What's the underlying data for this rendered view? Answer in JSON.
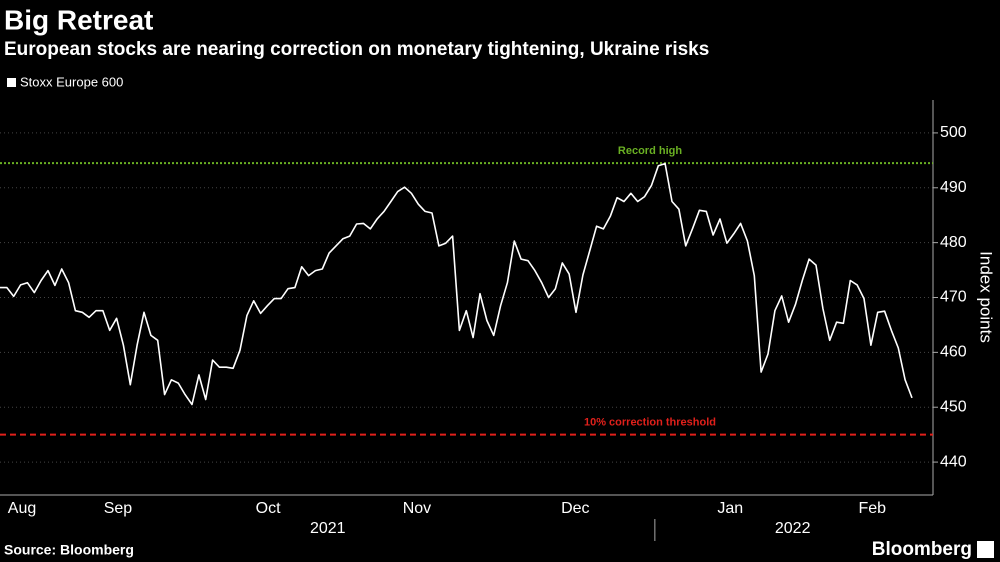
{
  "chart_data": {
    "type": "line",
    "title": "Big Retreat",
    "subtitle": "European stocks are nearing correction on monetary tightening, Ukraine risks",
    "y_axis_label": "Index points",
    "source": "Source: Bloomberg",
    "brand": "Bloomberg",
    "series": [
      {
        "name": "Stoxx Europe 600",
        "color": "#ffffff",
        "values": [
          471.8,
          471.8,
          470.2,
          472.3,
          472.7,
          470.9,
          473.1,
          474.9,
          472.2,
          475.2,
          472.7,
          467.6,
          467.3,
          466.4,
          467.6,
          467.6,
          464.0,
          466.2,
          461.3,
          454.1,
          461.3,
          467.3,
          463.1,
          462.2,
          452.3,
          455.0,
          454.4,
          452.3,
          450.5,
          455.9,
          451.4,
          458.6,
          457.3,
          457.3,
          457.1,
          460.4,
          466.7,
          469.4,
          467.1,
          468.5,
          469.8,
          469.8,
          471.6,
          471.8,
          475.6,
          474.0,
          474.9,
          475.2,
          478.1,
          479.4,
          480.7,
          481.2,
          483.4,
          483.5,
          482.5,
          484.3,
          485.7,
          487.5,
          489.3,
          490.1,
          489.0,
          487.0,
          485.7,
          485.4,
          479.4,
          479.9,
          481.2,
          464.0,
          467.6,
          462.7,
          470.7,
          465.8,
          463.1,
          468.5,
          472.7,
          480.3,
          477.0,
          476.7,
          474.9,
          472.7,
          470.0,
          471.6,
          476.3,
          474.3,
          467.3,
          474.1,
          478.5,
          483.0,
          482.5,
          484.8,
          488.2,
          487.5,
          489.0,
          487.5,
          488.4,
          490.4,
          494.0,
          494.4,
          487.5,
          486.1,
          479.4,
          482.6,
          485.9,
          485.7,
          481.4,
          484.3,
          479.9,
          481.6,
          483.5,
          480.3,
          474.0,
          456.4,
          459.7,
          467.6,
          470.3,
          465.5,
          468.7,
          473.1,
          477.0,
          475.9,
          468.0,
          462.2,
          465.5,
          465.3,
          473.1,
          472.3,
          469.8,
          461.3,
          467.3,
          467.5,
          464.0,
          460.8,
          455.0,
          451.7
        ]
      }
    ],
    "xlim": [
      0,
      133
    ],
    "xticks": [
      {
        "value": 3.2,
        "label": "Aug"
      },
      {
        "value": 17.2,
        "label": "Sep"
      },
      {
        "value": 39.1,
        "label": "Oct"
      },
      {
        "value": 60.8,
        "label": "Nov"
      },
      {
        "value": 83.9,
        "label": "Dec"
      },
      {
        "value": 106.5,
        "label": "Jan"
      },
      {
        "value": 127.2,
        "label": "Feb"
      }
    ],
    "year_labels": [
      {
        "value": 47.8,
        "label": "2021"
      },
      {
        "value": 115.6,
        "label": "2022"
      }
    ],
    "year_divider": 95.5,
    "ylim": [
      434,
      506
    ],
    "yticks": [
      440,
      450,
      460,
      470,
      480,
      490,
      500
    ],
    "y_axis_side": "right",
    "grid": true,
    "reference_lines": [
      {
        "label": "Record high",
        "value": 494.5,
        "color": "#6ab023",
        "style": "dotted"
      },
      {
        "label": "10% correction threshold",
        "value": 445,
        "color": "#e0201b",
        "style": "dashed"
      }
    ]
  }
}
